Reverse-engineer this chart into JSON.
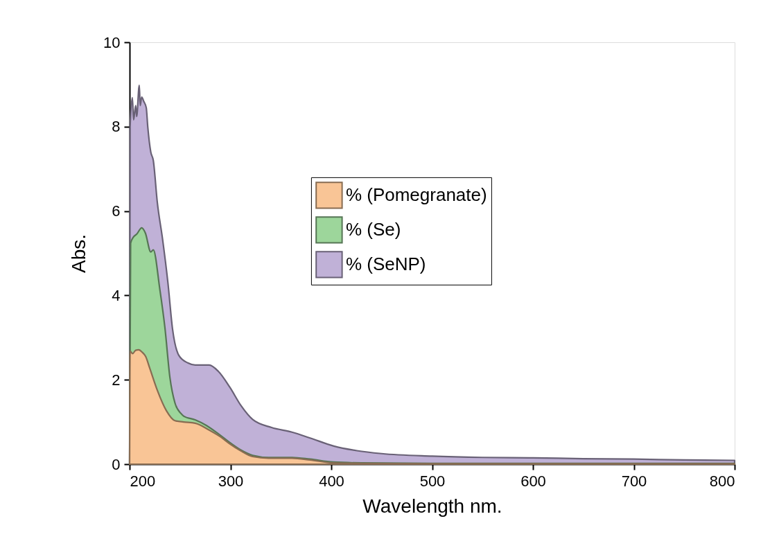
{
  "chart_data": {
    "type": "area",
    "xlabel": "Wavelength nm.",
    "ylabel": "Abs.",
    "xlim": [
      200,
      800
    ],
    "xticks": [
      200,
      300,
      400,
      500,
      600,
      700,
      800
    ],
    "ylim": [
      0,
      10
    ],
    "yticks": [
      0,
      2,
      4,
      6,
      8,
      10
    ],
    "grid": false,
    "legend": "top",
    "series": [
      {
        "name": "% (Pomegranate)",
        "color": "#f9c596",
        "x": [
          200,
          200.5,
          203,
          206,
          209,
          212.6,
          216,
          219.9,
          227.5,
          236.4,
          245,
          253.6,
          265,
          278.9,
          290,
          299.5,
          310,
          322,
          338,
          361,
          379,
          402,
          430,
          500,
          600,
          700,
          800
        ],
        "values": [
          0,
          2.68,
          2.62,
          2.7,
          2.71,
          2.65,
          2.55,
          2.28,
          1.75,
          1.27,
          1.03,
          1.0,
          0.97,
          0.81,
          0.65,
          0.48,
          0.32,
          0.18,
          0.14,
          0.14,
          0.1,
          0.03,
          0.02,
          0.01,
          0.01,
          0.01,
          0.01
        ]
      },
      {
        "name": "% (Se)",
        "color": "#9dd69b",
        "x": [
          200,
          201,
          203.7,
          207,
          212,
          215.6,
          221,
          223.5,
          230,
          235,
          240,
          245,
          251,
          253.6,
          265,
          276,
          288,
          299.5,
          310,
          322,
          338,
          361,
          379,
          402,
          430,
          500,
          600,
          700,
          800
        ],
        "values": [
          0,
          5.24,
          5.38,
          5.45,
          5.6,
          5.48,
          5.03,
          5.08,
          4.14,
          3.24,
          2.05,
          1.45,
          1.2,
          1.14,
          1.05,
          0.92,
          0.72,
          0.51,
          0.34,
          0.21,
          0.16,
          0.16,
          0.12,
          0.05,
          0.03,
          0.02,
          0.02,
          0.02,
          0.02
        ]
      },
      {
        "name": "% (SeNP)",
        "color": "#c0b1d7",
        "x": [
          200,
          200.5,
          202.7,
          204,
          206,
          207,
          209.6,
          210.5,
          212,
          214,
          216.5,
          218,
          221,
          223.5,
          227.5,
          232.6,
          238,
          242.6,
          248.8,
          257.7,
          265,
          278.9,
          288,
          299.5,
          310.7,
          322,
          340.7,
          361,
          379,
          402.5,
          425.4,
          450,
          500,
          550,
          600,
          650,
          700,
          750,
          800
        ],
        "values": [
          0,
          8.0,
          8.69,
          8.16,
          8.5,
          8.24,
          8.98,
          8.5,
          8.7,
          8.6,
          8.45,
          8.0,
          7.4,
          7.2,
          6.2,
          5.35,
          4.3,
          3.2,
          2.58,
          2.4,
          2.35,
          2.35,
          2.2,
          1.82,
          1.38,
          1.06,
          0.87,
          0.76,
          0.62,
          0.43,
          0.32,
          0.25,
          0.19,
          0.16,
          0.15,
          0.13,
          0.12,
          0.1,
          0.09
        ]
      }
    ]
  }
}
